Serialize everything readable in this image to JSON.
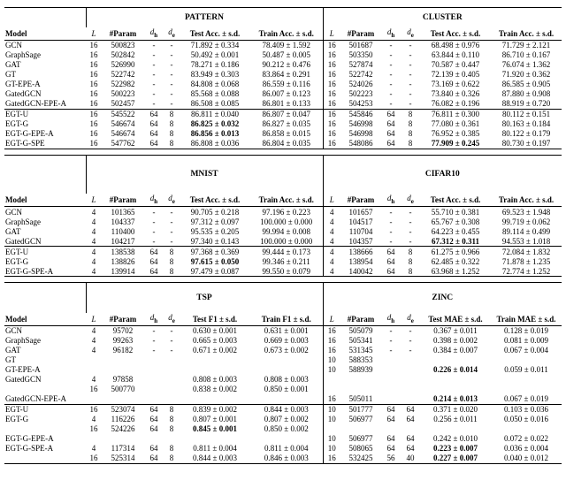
{
  "tables": [
    {
      "groups": [
        "PATTERN",
        "CLUSTER"
      ],
      "columns": [
        "Model",
        {
          "base": "L"
        },
        "#Param",
        {
          "base": "d",
          "sub": "h"
        },
        {
          "base": "d",
          "sub": "e"
        },
        "Test Acc. ± s.d.",
        "Train Acc. ± s.d.",
        {
          "base": "L"
        },
        "#Param",
        {
          "base": "d",
          "sub": "h"
        },
        {
          "base": "d",
          "sub": "e"
        },
        "Test Acc. ± s.d.",
        "Train Acc. ± s.d."
      ],
      "sections": [
        [
          [
            "GCN",
            "16",
            "500823",
            "-",
            "-",
            "71.892 ± 0.334",
            "78.409 ± 1.592",
            "16",
            "501687",
            "-",
            "-",
            "68.498 ± 0.976",
            "71.729 ± 2.121"
          ],
          [
            "GraphSage",
            "16",
            "502842",
            "-",
            "-",
            "50.492 ± 0.001",
            "50.487 ± 0.005",
            "16",
            "503350",
            "-",
            "-",
            "63.844 ± 0.110",
            "86.710 ± 0.167"
          ],
          [
            "GAT",
            "16",
            "526990",
            "-",
            "-",
            "78.271 ± 0.186",
            "90.212 ± 0.476",
            "16",
            "527874",
            "-",
            "-",
            "70.587 ± 0.447",
            "76.074 ± 1.362"
          ],
          [
            "GT",
            "16",
            "522742",
            "-",
            "-",
            "83.949 ± 0.303",
            "83.864 ± 0.291",
            "16",
            "522742",
            "-",
            "-",
            "72.139 ± 0.405",
            "71.920 ± 0.362"
          ],
          [
            "GT-EPE-A",
            "16",
            "522982",
            "-",
            "-",
            "84.808 ± 0.068",
            "86.559 ± 0.116",
            "16",
            "524026",
            "-",
            "-",
            "73.169 ± 0.622",
            "86.585 ± 0.905"
          ],
          [
            "GatedGCN",
            "16",
            "500223",
            "-",
            "-",
            "85.568 ± 0.088",
            "86.007 ± 0.123",
            "16",
            "502223",
            "-",
            "-",
            "73.840 ± 0.326",
            "87.880 ± 0.908"
          ],
          [
            "GatedGCN-EPE-A",
            "16",
            "502457",
            "-",
            "-",
            "86.508 ± 0.085",
            "86.801 ± 0.133",
            "16",
            "504253",
            "-",
            "-",
            "76.082 ± 0.196",
            "88.919 ± 0.720"
          ]
        ],
        [
          [
            "EGT-U",
            "16",
            "545522",
            "64",
            "8",
            "86.811 ± 0.040",
            "86.807 ± 0.047",
            "16",
            "545846",
            "64",
            "8",
            "76.811 ± 0.300",
            "80.112 ± 0.151"
          ],
          [
            "EGT-G",
            "16",
            "546674",
            "64",
            "8",
            {
              "text": "86.825 ± 0.032",
              "bold": true
            },
            "86.827 ± 0.035",
            "16",
            "546998",
            "64",
            "8",
            "77.080 ± 0.361",
            "80.163 ± 0.184"
          ],
          [
            "EGT-G-EPE-A",
            "16",
            "546674",
            "64",
            "8",
            {
              "text": "86.856 ± 0.013",
              "bold": true
            },
            "86.858 ± 0.015",
            "16",
            "546998",
            "64",
            "8",
            "76.952 ± 0.385",
            "80.122 ± 0.179"
          ],
          [
            "EGT-G-SPE",
            "16",
            "547762",
            "64",
            "8",
            "86.808 ± 0.036",
            "86.804 ± 0.035",
            "16",
            "548086",
            "64",
            "8",
            {
              "text": "77.909 ± 0.245",
              "bold": true
            },
            "80.730 ± 0.197"
          ]
        ]
      ]
    },
    {
      "groups": [
        "MNIST",
        "CIFAR10"
      ],
      "columns": [
        "Model",
        {
          "base": "L"
        },
        "#Param",
        {
          "base": "d",
          "sub": "h"
        },
        {
          "base": "d",
          "sub": "e"
        },
        "Test Acc. ± s.d.",
        "Train Acc. ± s.d.",
        {
          "base": "L"
        },
        "#Param",
        {
          "base": "d",
          "sub": "h"
        },
        {
          "base": "d",
          "sub": "e"
        },
        "Test Acc. ± s.d.",
        "Train Acc. ± s.d."
      ],
      "sections": [
        [
          [
            "GCN",
            "4",
            "101365",
            "-",
            "-",
            "90.705 ± 0.218",
            "97.196 ± 0.223",
            "4",
            "101657",
            "-",
            "-",
            "55.710 ± 0.381",
            "69.523 ± 1.948"
          ],
          [
            "GraphSage",
            "4",
            "104337",
            "-",
            "-",
            "97.312 ± 0.097",
            "100.000 ± 0.000",
            "4",
            "104517",
            "-",
            "-",
            "65.767 ± 0.308",
            "99.719 ± 0.062"
          ],
          [
            "GAT",
            "4",
            "110400",
            "-",
            "-",
            "95.535 ± 0.205",
            "99.994 ± 0.008",
            "4",
            "110704",
            "-",
            "-",
            "64.223 ± 0.455",
            "89.114 ± 0.499"
          ],
          [
            "GatedGCN",
            "4",
            "104217",
            "-",
            "-",
            "97.340 ± 0.143",
            "100.000 ± 0.000",
            "4",
            "104357",
            "-",
            "-",
            {
              "text": "67.312 ± 0.311",
              "bold": true
            },
            "94.553 ± 1.018"
          ]
        ],
        [
          [
            "EGT-U",
            "4",
            "138538",
            "64",
            "8",
            "97.368 ± 0.369",
            "99.444 ± 0.173",
            "4",
            "138666",
            "64",
            "8",
            "61.275 ± 0.966",
            "72.084 ± 1.832"
          ],
          [
            "EGT-G",
            "4",
            "138826",
            "64",
            "8",
            {
              "text": "97.615 ± 0.050",
              "bold": true
            },
            "99.346 ± 0.211",
            "4",
            "138954",
            "64",
            "8",
            "62.485 ± 0.322",
            "71.878 ± 1.235"
          ],
          [
            "EGT-G-SPE-A",
            "4",
            "139914",
            "64",
            "8",
            "97.479 ± 0.087",
            "99.550 ± 0.079",
            "4",
            "140042",
            "64",
            "8",
            "63.968 ± 1.252",
            "72.774 ± 1.252"
          ]
        ]
      ]
    },
    {
      "groups": [
        "TSP",
        "ZINC"
      ],
      "columns": [
        "Model",
        {
          "base": "L"
        },
        "#Param",
        {
          "base": "d",
          "sub": "h"
        },
        {
          "base": "d",
          "sub": "e"
        },
        "Test F1 ± s.d.",
        "Train F1 ± s.d.",
        {
          "base": "L"
        },
        "#Param",
        {
          "base": "d",
          "sub": "h"
        },
        {
          "base": "d",
          "sub": "e"
        },
        "Test MAE ± s.d.",
        "Train MAE ± s.d."
      ],
      "sections": [
        [
          [
            "GCN",
            "4",
            "95702",
            "-",
            "-",
            "0.630 ± 0.001",
            "0.631 ± 0.001",
            "16",
            "505079",
            "-",
            "-",
            "0.367 ± 0.011",
            "0.128 ± 0.019"
          ],
          [
            "GraphSage",
            "4",
            "99263",
            "-",
            "-",
            "0.665 ± 0.003",
            "0.669 ± 0.003",
            "16",
            "505341",
            "-",
            "-",
            "0.398 ± 0.002",
            "0.081 ± 0.009"
          ],
          [
            "GAT",
            "4",
            "96182",
            "-",
            "-",
            "0.671 ± 0.002",
            "0.673 ± 0.002",
            "16",
            "531345",
            "-",
            "-",
            "0.384 ± 0.007",
            "0.067 ± 0.004"
          ],
          [
            "GT",
            null,
            null,
            null,
            null,
            null,
            null,
            "10",
            "588353",
            null,
            null,
            null,
            null
          ],
          [
            "GT-EPE-A",
            null,
            null,
            null,
            null,
            null,
            null,
            "10",
            "588939",
            null,
            null,
            {
              "text": "0.226 ± 0.014",
              "bold": true
            },
            "0.059 ± 0.011"
          ],
          [
            "GatedGCN",
            "4",
            "97858",
            null,
            null,
            "0.808 ± 0.003",
            "0.808 ± 0.003",
            null,
            null,
            null,
            null,
            null,
            null
          ],
          [
            null,
            "16",
            "500770",
            null,
            null,
            "0.838 ± 0.002",
            "0.850 ± 0.001",
            null,
            null,
            null,
            null,
            null,
            null
          ],
          [
            "GatedGCN-EPE-A",
            null,
            null,
            null,
            null,
            null,
            null,
            "16",
            "505011",
            null,
            null,
            {
              "text": "0.214 ± 0.013",
              "bold": true
            },
            "0.067 ± 0.019"
          ]
        ],
        [
          [
            "EGT-U",
            "16",
            "523074",
            "64",
            "8",
            "0.839 ± 0.002",
            "0.844 ± 0.003",
            "10",
            "501777",
            "64",
            "64",
            "0.371 ± 0.020",
            "0.103 ± 0.036"
          ],
          [
            "EGT-G",
            "4",
            "116226",
            "64",
            "8",
            "0.807 ± 0.001",
            "0.807 ± 0.002",
            "10",
            "506977",
            "64",
            "64",
            "0.256 ± 0.011",
            "0.050 ± 0.016"
          ],
          [
            null,
            "16",
            "524226",
            "64",
            "8",
            {
              "text": "0.845 ± 0.001",
              "bold": true
            },
            "0.850 ± 0.002",
            null,
            null,
            null,
            null,
            null,
            null
          ],
          [
            "EGT-G-EPE-A",
            null,
            null,
            null,
            null,
            null,
            null,
            "10",
            "506977",
            "64",
            "64",
            "0.242 ± 0.010",
            "0.072 ± 0.022"
          ],
          [
            "EGT-G-SPE-A",
            "4",
            "117314",
            "64",
            "8",
            "0.811 ± 0.004",
            "0.811 ± 0.004",
            "10",
            "508065",
            "64",
            "64",
            {
              "text": "0.223 ± 0.007",
              "bold": true
            },
            "0.036 ± 0.004"
          ],
          [
            null,
            "16",
            "525314",
            "64",
            "8",
            "0.844 ± 0.003",
            "0.846 ± 0.003",
            "16",
            "532425",
            "56",
            "40",
            {
              "text": "0.227 ± 0.007",
              "bold": true
            },
            "0.040 ± 0.012"
          ]
        ]
      ]
    }
  ]
}
